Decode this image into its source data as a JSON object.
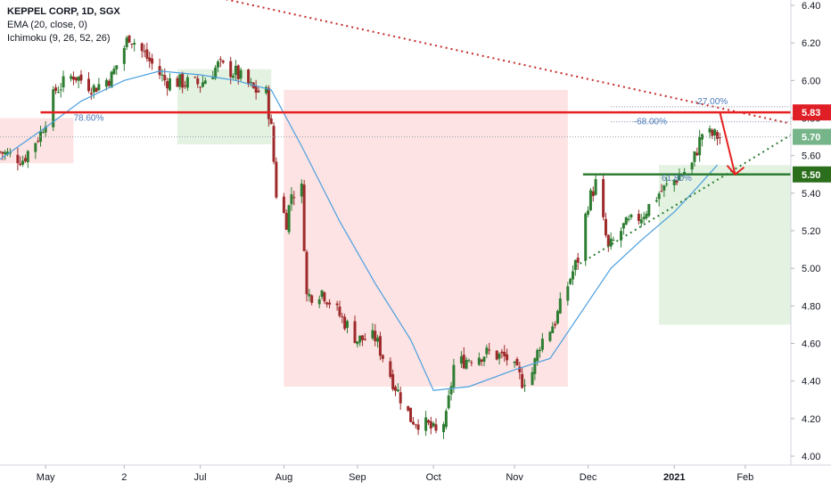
{
  "legend": {
    "title": "KEPPEL CORP, 1D, SGX",
    "ema": "EMA (20, close, 0)",
    "ichimoku": "Ichimoku (9, 26, 52, 26)"
  },
  "colors": {
    "up": "#2e7d32",
    "down": "#9e2a2b",
    "ema": "#4a9fe0",
    "cloud_bull": "#e3f2e1",
    "cloud_bear": "#fde3e3",
    "resistance": "#e62020",
    "support": "#2e7d32",
    "last_price": "#76b58a",
    "fib_label": "#4a78b8",
    "axis_text": "#131722"
  },
  "chart_data": {
    "type": "candlestick",
    "title": "KEPPEL CORP, 1D, SGX",
    "y_axis": {
      "min": 4.0,
      "max": 6.4,
      "ticks": [
        "6.40",
        "6.20",
        "6.00",
        "5.80",
        "5.60",
        "5.40",
        "5.20",
        "5.00",
        "4.80",
        "4.60",
        "4.40",
        "4.20",
        "4.00"
      ]
    },
    "x_axis": {
      "start": "2020-04-13",
      "end": "2021-02-19",
      "ticks": [
        {
          "date": "2020-05-01",
          "label": "May"
        },
        {
          "date": "2020-06-01",
          "label": "2"
        },
        {
          "date": "2020-07-01",
          "label": "Jul"
        },
        {
          "date": "2020-08-03",
          "label": "Aug"
        },
        {
          "date": "2020-09-01",
          "label": "Sep"
        },
        {
          "date": "2020-10-01",
          "label": "Oct"
        },
        {
          "date": "2020-11-02",
          "label": "Nov"
        },
        {
          "date": "2020-12-01",
          "label": "Dec"
        },
        {
          "date": "2021-01-04",
          "label": "2021"
        },
        {
          "date": "2021-02-01",
          "label": "Feb"
        }
      ]
    },
    "price_path": [
      [
        "2020-04-13",
        5.62
      ],
      [
        "2020-04-22",
        5.58
      ],
      [
        "2020-04-29",
        5.72
      ],
      [
        "2020-05-05",
        5.95
      ],
      [
        "2020-05-12",
        6.03
      ],
      [
        "2020-05-20",
        5.96
      ],
      [
        "2020-05-27",
        6.02
      ],
      [
        "2020-06-03",
        6.24
      ],
      [
        "2020-06-10",
        6.12
      ],
      [
        "2020-06-17",
        6.0
      ],
      [
        "2020-06-24",
        5.99
      ],
      [
        "2020-07-01",
        5.98
      ],
      [
        "2020-07-08",
        6.08
      ],
      [
        "2020-07-15",
        6.04
      ],
      [
        "2020-07-22",
        5.95
      ],
      [
        "2020-07-27",
        5.93
      ],
      [
        "2020-07-29",
        5.74
      ],
      [
        "2020-07-31",
        5.4
      ],
      [
        "2020-08-04",
        5.25
      ],
      [
        "2020-08-06",
        5.4
      ],
      [
        "2020-08-10",
        5.42
      ],
      [
        "2020-08-12",
        4.85
      ],
      [
        "2020-08-18",
        4.88
      ],
      [
        "2020-08-25",
        4.75
      ],
      [
        "2020-09-01",
        4.62
      ],
      [
        "2020-09-08",
        4.63
      ],
      [
        "2020-09-15",
        4.4
      ],
      [
        "2020-09-22",
        4.2
      ],
      [
        "2020-09-29",
        4.16
      ],
      [
        "2020-10-02",
        4.12
      ],
      [
        "2020-10-06",
        4.2
      ],
      [
        "2020-10-09",
        4.48
      ],
      [
        "2020-10-16",
        4.53
      ],
      [
        "2020-10-23",
        4.55
      ],
      [
        "2020-10-30",
        4.52
      ],
      [
        "2020-11-05",
        4.4
      ],
      [
        "2020-11-09",
        4.45
      ],
      [
        "2020-11-12",
        4.6
      ],
      [
        "2020-11-18",
        4.72
      ],
      [
        "2020-11-24",
        4.95
      ],
      [
        "2020-11-27",
        5.05
      ],
      [
        "2020-12-01",
        5.35
      ],
      [
        "2020-12-04",
        5.45
      ],
      [
        "2020-12-09",
        5.1
      ],
      [
        "2020-12-15",
        5.22
      ],
      [
        "2020-12-22",
        5.28
      ],
      [
        "2020-12-29",
        5.4
      ],
      [
        "2021-01-05",
        5.48
      ],
      [
        "2021-01-11",
        5.55
      ],
      [
        "2021-01-15",
        5.72
      ],
      [
        "2021-01-22",
        5.7
      ]
    ],
    "ema20": [
      [
        "2020-04-13",
        5.58
      ],
      [
        "2020-05-01",
        5.75
      ],
      [
        "2020-05-15",
        5.89
      ],
      [
        "2020-06-01",
        6.0
      ],
      [
        "2020-06-15",
        6.05
      ],
      [
        "2020-07-01",
        6.03
      ],
      [
        "2020-07-15",
        6.0
      ],
      [
        "2020-07-29",
        5.95
      ],
      [
        "2020-08-10",
        5.65
      ],
      [
        "2020-08-25",
        5.25
      ],
      [
        "2020-09-08",
        4.92
      ],
      [
        "2020-09-22",
        4.62
      ],
      [
        "2020-10-01",
        4.35
      ],
      [
        "2020-10-15",
        4.37
      ],
      [
        "2020-11-02",
        4.46
      ],
      [
        "2020-11-16",
        4.52
      ],
      [
        "2020-11-30",
        4.8
      ],
      [
        "2020-12-10",
        5.0
      ],
      [
        "2020-12-22",
        5.15
      ],
      [
        "2021-01-04",
        5.3
      ],
      [
        "2021-01-11",
        5.4
      ],
      [
        "2021-01-21",
        5.55
      ]
    ],
    "ichimoku_cloud": [
      {
        "start": "2020-04-13",
        "end": "2020-05-12",
        "color": "bear",
        "top": 5.8,
        "bottom": 5.56
      },
      {
        "start": "2020-06-22",
        "end": "2020-07-29",
        "color": "bull",
        "top": 6.06,
        "bottom": 5.66
      },
      {
        "start": "2020-08-03",
        "end": "2020-11-23",
        "color": "bear",
        "top": 5.95,
        "bottom": 4.37
      },
      {
        "start": "2020-12-29",
        "end": "2021-02-19",
        "color": "bull",
        "top": 5.55,
        "bottom": 4.7
      }
    ],
    "annotations": {
      "fib_labels": [
        "78.60%",
        "-27.00%",
        "-68.00%",
        "61.80%"
      ],
      "resistance_level": "5.83",
      "support_level": "5.50",
      "last_price": "5.70"
    }
  }
}
